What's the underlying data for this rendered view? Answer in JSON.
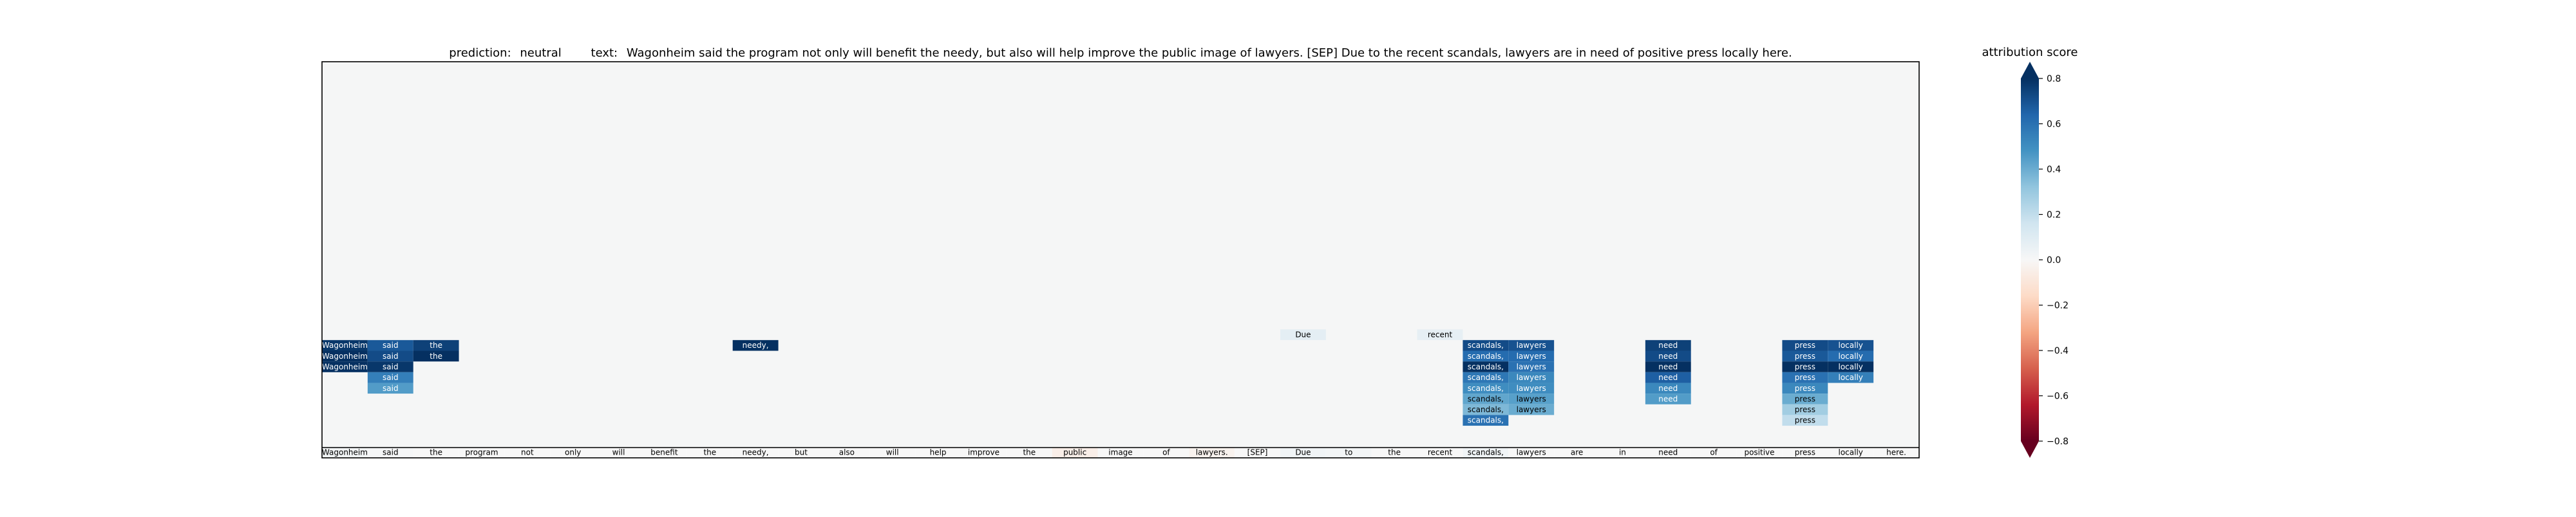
{
  "figure": {
    "title_parts": {
      "prediction_label": "prediction:",
      "prediction_value": "neutral",
      "text_label": "text:",
      "text_value": "Wagonheim said the program not only will benefit the needy, but also will help improve the public image of lawyers. [SEP] Due to the recent scandals, lawyers are in need of positive press locally here."
    }
  },
  "colorbar": {
    "label": "attribution score",
    "ticks": [
      "0.8",
      "0.6",
      "0.4",
      "0.2",
      "0.0",
      "−0.2",
      "−0.4",
      "−0.6",
      "−0.8"
    ],
    "tick_values": [
      0.8,
      0.6,
      0.4,
      0.2,
      0.0,
      -0.2,
      -0.4,
      -0.6,
      -0.8
    ],
    "range": [
      -0.8,
      0.8
    ],
    "extend": "both",
    "colormap": "RdBu",
    "colors": {
      "negative_end": "#67001f",
      "mid": "#f7f7f7",
      "positive_end": "#053061"
    }
  },
  "chart_data": {
    "type": "heatmap",
    "title": "prediction:  neutral     text:  Wagonheim said the program not only will benefit the needy, but also will help improve the public image of lawyers. [SEP] Due to the recent scandals, lawyers are in need of positive press locally here.",
    "colorbar_label": "attribution score",
    "value_range": [
      -0.8,
      0.8
    ],
    "grid": false,
    "background_value": 0.0,
    "n_rows": 36,
    "tokens": [
      "Wagonheim",
      "said",
      "the",
      "program",
      "not",
      "only",
      "will",
      "benefit",
      "the",
      "needy,",
      "but",
      "also",
      "will",
      "help",
      "improve",
      "the",
      "public",
      "image",
      "of",
      "lawyers.",
      "[SEP]",
      "Due",
      "to",
      "the",
      "recent",
      "scandals,",
      "lawyers",
      "are",
      "in",
      "need",
      "of",
      "positive",
      "press",
      "locally",
      "here."
    ],
    "token_scores": [
      0.02,
      0.01,
      0.0,
      0.0,
      0.0,
      0.0,
      0.0,
      0.0,
      0.0,
      0.0,
      0.0,
      0.0,
      0.0,
      0.0,
      0.0,
      0.0,
      -0.05,
      0.0,
      0.0,
      -0.03,
      0.0,
      0.03,
      0.02,
      0.0,
      0.0,
      0.03,
      0.0,
      0.0,
      0.0,
      0.0,
      0.0,
      0.0,
      0.0,
      0.0,
      0.0
    ],
    "cells": [
      {
        "token": 0,
        "row": 26,
        "value": 0.78
      },
      {
        "token": 0,
        "row": 27,
        "value": 0.8
      },
      {
        "token": 0,
        "row": 28,
        "value": 0.8
      },
      {
        "token": 1,
        "row": 26,
        "value": 0.68
      },
      {
        "token": 1,
        "row": 27,
        "value": 0.72
      },
      {
        "token": 1,
        "row": 28,
        "value": 0.78
      },
      {
        "token": 1,
        "row": 29,
        "value": 0.55
      },
      {
        "token": 1,
        "row": 30,
        "value": 0.45
      },
      {
        "token": 2,
        "row": 26,
        "value": 0.75
      },
      {
        "token": 2,
        "row": 27,
        "value": 0.8
      },
      {
        "token": 9,
        "row": 26,
        "value": 0.8
      },
      {
        "token": 21,
        "row": 25,
        "value": 0.08
      },
      {
        "token": 24,
        "row": 25,
        "value": 0.07
      },
      {
        "token": 25,
        "row": 26,
        "value": 0.72
      },
      {
        "token": 25,
        "row": 27,
        "value": 0.62
      },
      {
        "token": 25,
        "row": 28,
        "value": 0.8
      },
      {
        "token": 25,
        "row": 29,
        "value": 0.58
      },
      {
        "token": 25,
        "row": 30,
        "value": 0.5
      },
      {
        "token": 25,
        "row": 31,
        "value": 0.42
      },
      {
        "token": 25,
        "row": 32,
        "value": 0.36
      },
      {
        "token": 25,
        "row": 33,
        "value": 0.6
      },
      {
        "token": 26,
        "row": 26,
        "value": 0.7
      },
      {
        "token": 26,
        "row": 27,
        "value": 0.62
      },
      {
        "token": 26,
        "row": 28,
        "value": 0.6
      },
      {
        "token": 26,
        "row": 29,
        "value": 0.52
      },
      {
        "token": 26,
        "row": 30,
        "value": 0.5
      },
      {
        "token": 26,
        "row": 31,
        "value": 0.44
      },
      {
        "token": 26,
        "row": 32,
        "value": 0.4
      },
      {
        "token": 29,
        "row": 26,
        "value": 0.75
      },
      {
        "token": 29,
        "row": 27,
        "value": 0.72
      },
      {
        "token": 29,
        "row": 28,
        "value": 0.8
      },
      {
        "token": 29,
        "row": 29,
        "value": 0.66
      },
      {
        "token": 29,
        "row": 30,
        "value": 0.52
      },
      {
        "token": 29,
        "row": 31,
        "value": 0.45
      },
      {
        "token": 32,
        "row": 26,
        "value": 0.72
      },
      {
        "token": 32,
        "row": 27,
        "value": 0.68
      },
      {
        "token": 32,
        "row": 28,
        "value": 0.8
      },
      {
        "token": 32,
        "row": 29,
        "value": 0.6
      },
      {
        "token": 32,
        "row": 30,
        "value": 0.52
      },
      {
        "token": 32,
        "row": 31,
        "value": 0.4
      },
      {
        "token": 32,
        "row": 32,
        "value": 0.28
      },
      {
        "token": 32,
        "row": 33,
        "value": 0.2
      },
      {
        "token": 33,
        "row": 26,
        "value": 0.7
      },
      {
        "token": 33,
        "row": 27,
        "value": 0.62
      },
      {
        "token": 33,
        "row": 28,
        "value": 0.8
      },
      {
        "token": 33,
        "row": 29,
        "value": 0.55
      }
    ]
  }
}
